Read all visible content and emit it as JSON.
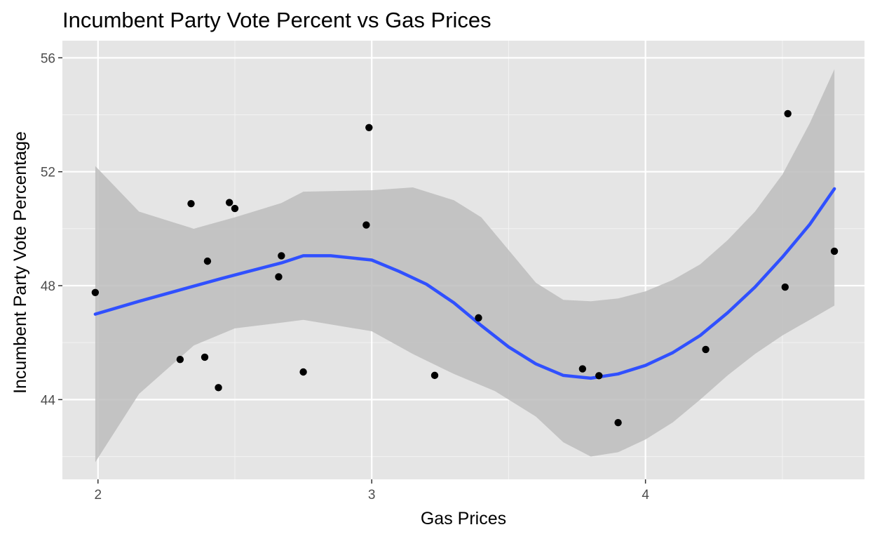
{
  "chart_data": {
    "type": "scatter",
    "title": "Incumbent Party Vote Percent vs Gas Prices",
    "xlabel": "Gas Prices",
    "ylabel": "Incumbent Party Vote Percentage",
    "xlim": [
      1.87,
      4.8
    ],
    "ylim": [
      41.2,
      56.6
    ],
    "x_ticks": [
      2,
      3,
      4
    ],
    "x_tick_labels": [
      "2",
      "3",
      "4"
    ],
    "y_ticks": [
      44,
      48,
      52,
      56
    ],
    "y_tick_labels": [
      "44",
      "48",
      "52",
      "56"
    ],
    "grid": true,
    "background": "#e5e5e5",
    "points_color": "#000000",
    "points": [
      {
        "x": 1.99,
        "y": 47.76
      },
      {
        "x": 2.3,
        "y": 45.41
      },
      {
        "x": 2.34,
        "y": 50.88
      },
      {
        "x": 2.39,
        "y": 45.49
      },
      {
        "x": 2.4,
        "y": 48.86
      },
      {
        "x": 2.44,
        "y": 44.42
      },
      {
        "x": 2.48,
        "y": 50.92
      },
      {
        "x": 2.5,
        "y": 50.71
      },
      {
        "x": 2.66,
        "y": 48.31
      },
      {
        "x": 2.67,
        "y": 49.05
      },
      {
        "x": 2.75,
        "y": 44.97
      },
      {
        "x": 2.98,
        "y": 50.13
      },
      {
        "x": 2.99,
        "y": 53.55
      },
      {
        "x": 3.23,
        "y": 44.85
      },
      {
        "x": 3.39,
        "y": 46.87
      },
      {
        "x": 3.77,
        "y": 45.08
      },
      {
        "x": 3.83,
        "y": 44.84
      },
      {
        "x": 3.9,
        "y": 43.19
      },
      {
        "x": 4.22,
        "y": 45.76
      },
      {
        "x": 4.51,
        "y": 47.95
      },
      {
        "x": 4.52,
        "y": 54.04
      },
      {
        "x": 4.69,
        "y": 49.21
      }
    ],
    "smooth": {
      "method": "loess",
      "line_color": "#3050ff",
      "band_color": "#bdbdbd",
      "fit": [
        {
          "x": 1.99,
          "y": 47.0
        },
        {
          "x": 2.15,
          "y": 47.45
        },
        {
          "x": 2.3,
          "y": 47.85
        },
        {
          "x": 2.45,
          "y": 48.25
        },
        {
          "x": 2.55,
          "y": 48.5
        },
        {
          "x": 2.67,
          "y": 48.8
        },
        {
          "x": 2.75,
          "y": 49.05
        },
        {
          "x": 2.85,
          "y": 49.05
        },
        {
          "x": 3.0,
          "y": 48.9
        },
        {
          "x": 3.1,
          "y": 48.5
        },
        {
          "x": 3.2,
          "y": 48.05
        },
        {
          "x": 3.3,
          "y": 47.4
        },
        {
          "x": 3.4,
          "y": 46.6
        },
        {
          "x": 3.5,
          "y": 45.85
        },
        {
          "x": 3.6,
          "y": 45.25
        },
        {
          "x": 3.7,
          "y": 44.85
        },
        {
          "x": 3.8,
          "y": 44.75
        },
        {
          "x": 3.9,
          "y": 44.9
        },
        {
          "x": 4.0,
          "y": 45.2
        },
        {
          "x": 4.1,
          "y": 45.65
        },
        {
          "x": 4.2,
          "y": 46.25
        },
        {
          "x": 4.3,
          "y": 47.05
        },
        {
          "x": 4.4,
          "y": 47.95
        },
        {
          "x": 4.5,
          "y": 49.0
        },
        {
          "x": 4.6,
          "y": 50.15
        },
        {
          "x": 4.69,
          "y": 51.4
        }
      ],
      "upper": [
        {
          "x": 1.99,
          "y": 52.2
        },
        {
          "x": 2.15,
          "y": 50.6
        },
        {
          "x": 2.35,
          "y": 50.0
        },
        {
          "x": 2.5,
          "y": 50.4
        },
        {
          "x": 2.67,
          "y": 50.9
        },
        {
          "x": 2.75,
          "y": 51.3
        },
        {
          "x": 3.0,
          "y": 51.35
        },
        {
          "x": 3.15,
          "y": 51.45
        },
        {
          "x": 3.3,
          "y": 51.0
        },
        {
          "x": 3.4,
          "y": 50.4
        },
        {
          "x": 3.5,
          "y": 49.25
        },
        {
          "x": 3.6,
          "y": 48.1
        },
        {
          "x": 3.7,
          "y": 47.5
        },
        {
          "x": 3.8,
          "y": 47.45
        },
        {
          "x": 3.9,
          "y": 47.55
        },
        {
          "x": 4.0,
          "y": 47.8
        },
        {
          "x": 4.1,
          "y": 48.2
        },
        {
          "x": 4.2,
          "y": 48.75
        },
        {
          "x": 4.3,
          "y": 49.6
        },
        {
          "x": 4.4,
          "y": 50.6
        },
        {
          "x": 4.5,
          "y": 51.9
        },
        {
          "x": 4.6,
          "y": 53.7
        },
        {
          "x": 4.69,
          "y": 55.6
        }
      ],
      "lower": [
        {
          "x": 1.99,
          "y": 41.8
        },
        {
          "x": 2.15,
          "y": 44.2
        },
        {
          "x": 2.35,
          "y": 45.9
        },
        {
          "x": 2.5,
          "y": 46.5
        },
        {
          "x": 2.67,
          "y": 46.7
        },
        {
          "x": 2.75,
          "y": 46.8
        },
        {
          "x": 3.0,
          "y": 46.4
        },
        {
          "x": 3.15,
          "y": 45.6
        },
        {
          "x": 3.3,
          "y": 44.9
        },
        {
          "x": 3.45,
          "y": 44.3
        },
        {
          "x": 3.6,
          "y": 43.4
        },
        {
          "x": 3.7,
          "y": 42.5
        },
        {
          "x": 3.8,
          "y": 42.0
        },
        {
          "x": 3.9,
          "y": 42.15
        },
        {
          "x": 4.0,
          "y": 42.6
        },
        {
          "x": 4.1,
          "y": 43.2
        },
        {
          "x": 4.2,
          "y": 44.0
        },
        {
          "x": 4.3,
          "y": 44.85
        },
        {
          "x": 4.4,
          "y": 45.6
        },
        {
          "x": 4.5,
          "y": 46.25
        },
        {
          "x": 4.6,
          "y": 46.8
        },
        {
          "x": 4.69,
          "y": 47.3
        }
      ]
    }
  }
}
